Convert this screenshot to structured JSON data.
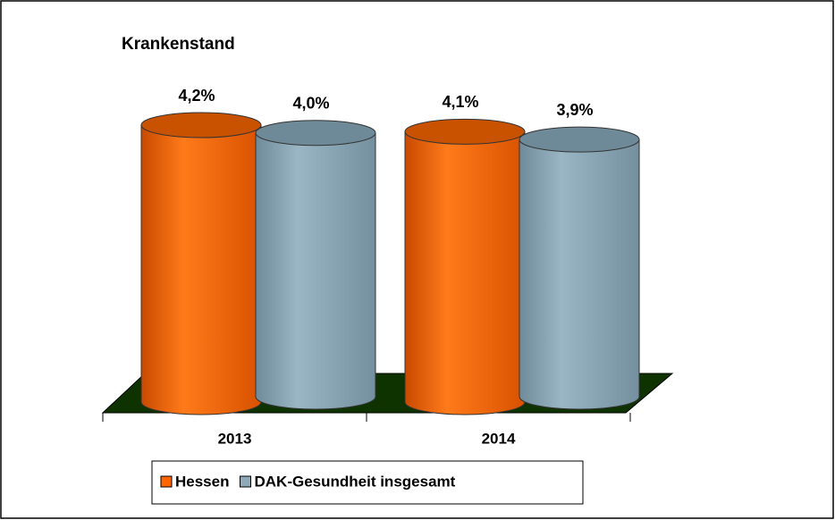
{
  "chart_data": {
    "type": "cylinder",
    "title": "Krankenstand",
    "categories": [
      "2013",
      "2014"
    ],
    "series": [
      {
        "name": "Hessen",
        "color": "#ff6600",
        "values": [
          4.2,
          4.1
        ],
        "value_labels": [
          "4,2%",
          "4,1%"
        ]
      },
      {
        "name": "DAK-Gesundheit insgesamt",
        "color": "#8eaab8",
        "values": [
          4.0,
          3.9
        ],
        "value_labels": [
          "4,0%",
          "3,9%"
        ]
      }
    ],
    "legend": "bottom"
  }
}
